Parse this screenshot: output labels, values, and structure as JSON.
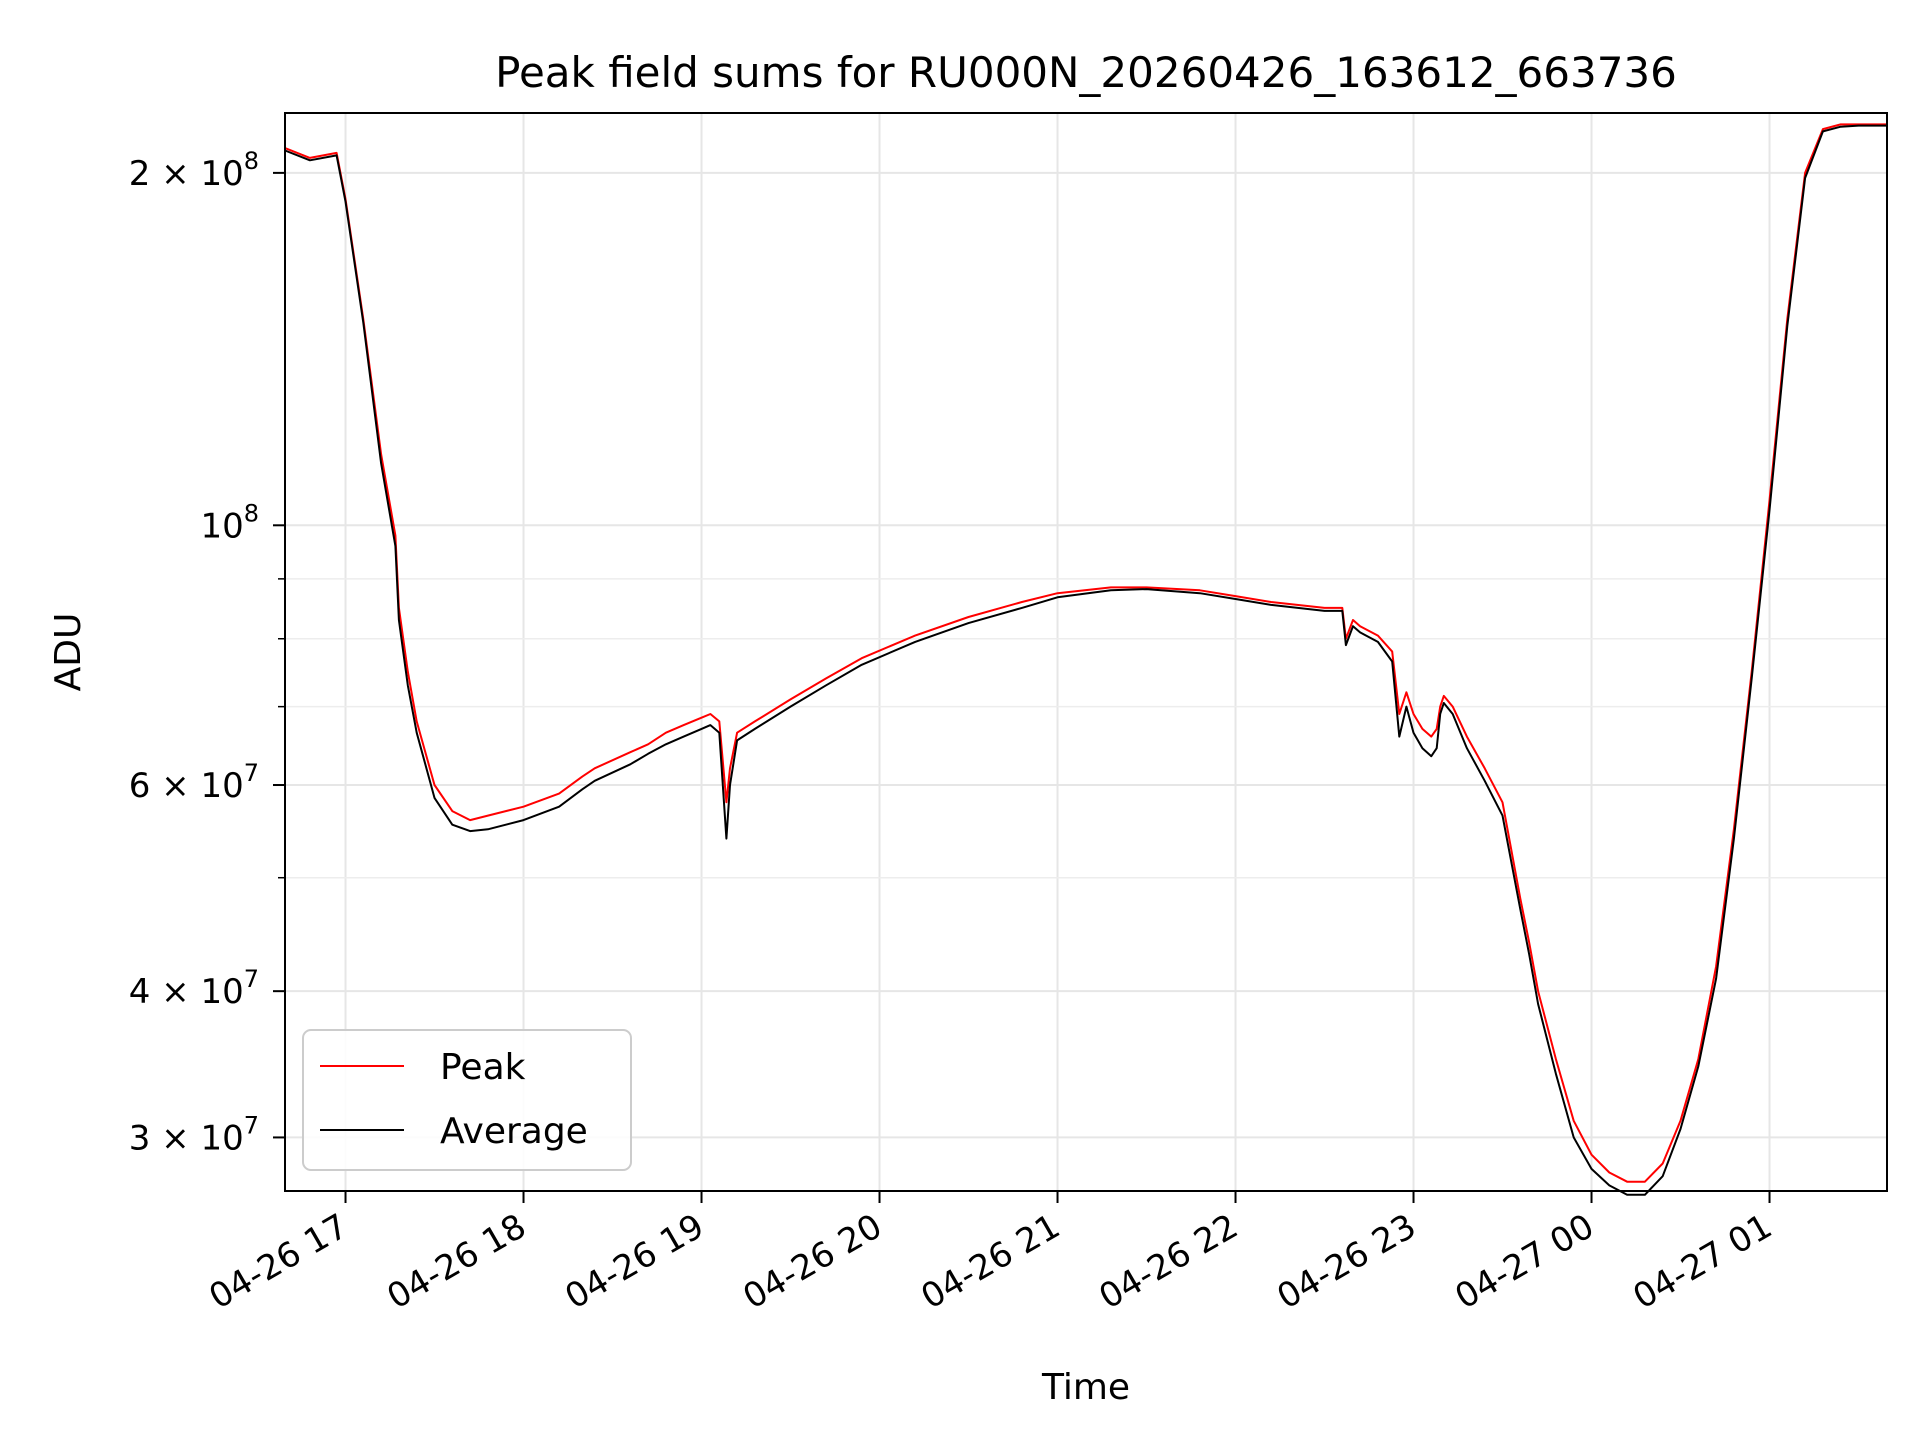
{
  "chart_data": {
    "type": "line",
    "title": "Peak field sums for RU000N_20260426_163612_663736",
    "xlabel": "Time",
    "ylabel": "ADU",
    "yscale": "log",
    "ylim": [
      27000000,
      225000000
    ],
    "xlim_hours": [
      16.66,
      25.66
    ],
    "grid": true,
    "legend_position": "lower-left",
    "x_ticks": [
      {
        "label": "04-26 17",
        "value": 17
      },
      {
        "label": "04-26 18",
        "value": 18
      },
      {
        "label": "04-26 19",
        "value": 19
      },
      {
        "label": "04-26 20",
        "value": 20
      },
      {
        "label": "04-26 21",
        "value": 21
      },
      {
        "label": "04-26 22",
        "value": 22
      },
      {
        "label": "04-26 23",
        "value": 23
      },
      {
        "label": "04-27 00",
        "value": 24
      },
      {
        "label": "04-27 01",
        "value": 25
      }
    ],
    "y_ticks": [
      {
        "label": "3 × 10^7",
        "mantissa": "3",
        "exp": "7",
        "value": 30000000
      },
      {
        "label": "4 × 10^7",
        "mantissa": "4",
        "exp": "7",
        "value": 40000000
      },
      {
        "label": "6 × 10^7",
        "mantissa": "6",
        "exp": "7",
        "value": 60000000
      },
      {
        "label": "10^8",
        "mantissa": "",
        "exp": "8",
        "value": 100000000
      },
      {
        "label": "2 × 10^8",
        "mantissa": "2",
        "exp": "8",
        "value": 200000000
      }
    ],
    "y_minor_ticks": [
      50000000,
      70000000,
      80000000,
      90000000
    ],
    "series": [
      {
        "name": "Peak",
        "color": "#ff0000",
        "x": [
          16.66,
          16.8,
          16.95,
          17.0,
          17.1,
          17.2,
          17.28,
          17.3,
          17.35,
          17.4,
          17.5,
          17.6,
          17.7,
          17.8,
          18.0,
          18.2,
          18.33,
          18.4,
          18.6,
          18.7,
          18.8,
          18.9,
          19.0,
          19.05,
          19.1,
          19.14,
          19.16,
          19.2,
          19.3,
          19.5,
          19.7,
          19.9,
          20.2,
          20.5,
          20.8,
          21.0,
          21.3,
          21.5,
          21.8,
          22.0,
          22.2,
          22.5,
          22.6,
          22.62,
          22.66,
          22.7,
          22.8,
          22.88,
          22.92,
          22.96,
          23.0,
          23.05,
          23.1,
          23.13,
          23.15,
          23.17,
          23.22,
          23.3,
          23.4,
          23.5,
          23.6,
          23.65,
          23.7,
          23.8,
          23.9,
          24.0,
          24.1,
          24.2,
          24.3,
          24.4,
          24.5,
          24.6,
          24.7,
          24.8,
          24.9,
          25.0,
          25.1,
          25.2,
          25.3,
          25.4,
          25.5,
          25.66
        ],
        "y": [
          210000000,
          206000000,
          208000000,
          190000000,
          150000000,
          115000000,
          98000000,
          85000000,
          75000000,
          68000000,
          60000000,
          57000000,
          56000000,
          56500000,
          57500000,
          59000000,
          61000000,
          62000000,
          64000000,
          65000000,
          66500000,
          67500000,
          68500000,
          69000000,
          68000000,
          58000000,
          62000000,
          66500000,
          68000000,
          71000000,
          74000000,
          77000000,
          80500000,
          83500000,
          86000000,
          87500000,
          88500000,
          88500000,
          88000000,
          87000000,
          86000000,
          85000000,
          85000000,
          80000000,
          83000000,
          82000000,
          80500000,
          78000000,
          69000000,
          72000000,
          69000000,
          67000000,
          66000000,
          67000000,
          70000000,
          71500000,
          70000000,
          66000000,
          62000000,
          58000000,
          48000000,
          44000000,
          40000000,
          35000000,
          31000000,
          29000000,
          28000000,
          27500000,
          27500000,
          28500000,
          31000000,
          35000000,
          42000000,
          55000000,
          75000000,
          105000000,
          150000000,
          200000000,
          218000000,
          220000000,
          220000000,
          220000000
        ]
      },
      {
        "name": "Average",
        "color": "#000000",
        "x": [
          16.66,
          16.8,
          16.95,
          17.0,
          17.1,
          17.2,
          17.28,
          17.3,
          17.35,
          17.4,
          17.5,
          17.6,
          17.7,
          17.8,
          18.0,
          18.2,
          18.33,
          18.4,
          18.6,
          18.7,
          18.8,
          18.9,
          19.0,
          19.05,
          19.1,
          19.14,
          19.16,
          19.2,
          19.3,
          19.5,
          19.7,
          19.9,
          20.2,
          20.5,
          20.8,
          21.0,
          21.3,
          21.5,
          21.8,
          22.0,
          22.2,
          22.5,
          22.6,
          22.62,
          22.66,
          22.7,
          22.8,
          22.88,
          22.92,
          22.96,
          23.0,
          23.05,
          23.1,
          23.13,
          23.15,
          23.17,
          23.22,
          23.3,
          23.4,
          23.5,
          23.6,
          23.65,
          23.7,
          23.8,
          23.9,
          24.0,
          24.1,
          24.2,
          24.3,
          24.4,
          24.5,
          24.6,
          24.7,
          24.8,
          24.9,
          25.0,
          25.1,
          25.2,
          25.3,
          25.4,
          25.5,
          25.66
        ],
        "y": [
          209000000,
          205000000,
          207000000,
          189000000,
          149000000,
          113000000,
          96000000,
          83000000,
          73000000,
          66500000,
          58500000,
          55500000,
          54800000,
          55000000,
          56000000,
          57500000,
          59500000,
          60500000,
          62500000,
          63800000,
          65000000,
          66000000,
          67000000,
          67500000,
          66500000,
          54000000,
          60000000,
          65500000,
          67000000,
          70000000,
          73000000,
          76000000,
          79500000,
          82500000,
          85000000,
          86800000,
          88000000,
          88200000,
          87500000,
          86500000,
          85500000,
          84500000,
          84500000,
          79000000,
          82000000,
          81000000,
          79500000,
          76500000,
          66000000,
          70000000,
          66500000,
          64500000,
          63500000,
          64500000,
          69000000,
          70500000,
          69000000,
          64500000,
          60500000,
          56500000,
          47000000,
          43000000,
          39000000,
          34000000,
          30000000,
          28200000,
          27300000,
          26800000,
          26800000,
          27800000,
          30500000,
          34500000,
          41000000,
          54000000,
          74000000,
          103000000,
          148000000,
          198000000,
          217000000,
          219000000,
          219500000,
          219500000
        ]
      }
    ]
  }
}
